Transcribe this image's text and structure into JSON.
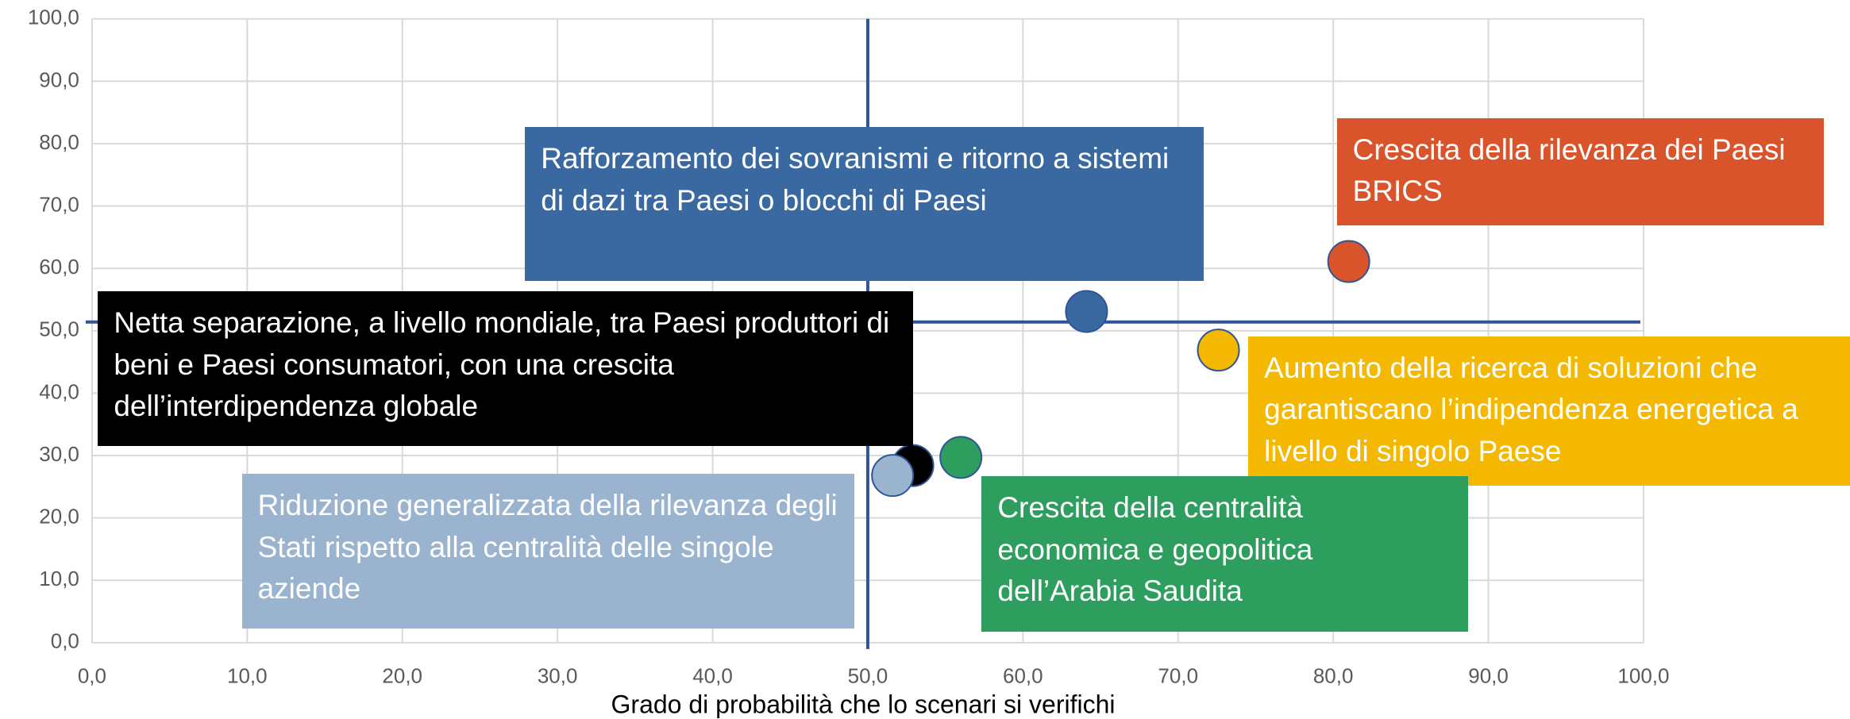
{
  "chart_data": {
    "type": "scatter",
    "x_label": "Grado di probabilità che lo scenari si verifichi",
    "xlim": [
      0,
      100
    ],
    "ylim": [
      0,
      100
    ],
    "xticks": [
      {
        "value": 0,
        "label": "0,0"
      },
      {
        "value": 10,
        "label": "10,0"
      },
      {
        "value": 20,
        "label": "20,0"
      },
      {
        "value": 30,
        "label": "30,0"
      },
      {
        "value": 40,
        "label": "40,0"
      },
      {
        "value": 50,
        "label": "50,0"
      },
      {
        "value": 60,
        "label": "60,0"
      },
      {
        "value": 70,
        "label": "70,0"
      },
      {
        "value": 80,
        "label": "80,0"
      },
      {
        "value": 90,
        "label": "90,0"
      },
      {
        "value": 100,
        "label": "100,0"
      }
    ],
    "yticks": [
      {
        "value": 0,
        "label": "0,0"
      },
      {
        "value": 10,
        "label": "10,0"
      },
      {
        "value": 20,
        "label": "20,0"
      },
      {
        "value": 30,
        "label": "30,0"
      },
      {
        "value": 40,
        "label": "40,0"
      },
      {
        "value": 50,
        "label": "50,0"
      },
      {
        "value": 60,
        "label": "60,0"
      },
      {
        "value": 70,
        "label": "70,0"
      },
      {
        "value": 80,
        "label": "80,0"
      },
      {
        "value": 90,
        "label": "90,0"
      },
      {
        "value": 100,
        "label": "100,0"
      }
    ],
    "grid": true,
    "reference_lines": {
      "x": 50,
      "y": 51.4,
      "color": "#2f5597"
    },
    "series": [
      {
        "name": "Rafforzamento dei sovranismi e ritorno a sistemi di dazi tra Paesi o blocchi di Paesi",
        "color": "#3a68a0",
        "x": [
          64.1
        ],
        "values": [
          53.1
        ]
      },
      {
        "name": "Crescita della rilevanza dei Paesi BRICS",
        "color": "#d9532b",
        "x": [
          81.0
        ],
        "values": [
          61.1
        ]
      },
      {
        "name": "Aumento della ricerca di soluzioni che garantiscano l’indipendenza energetica a livello di singolo Paese",
        "color": "#f5b800",
        "x": [
          72.6
        ],
        "values": [
          46.9
        ]
      },
      {
        "name": "Netta separazione, a livello mondiale, tra Paesi produttori di beni e Paesi consumatori, con una crescita dell’interdipendenza globale",
        "color": "#000000",
        "x": [
          52.9
        ],
        "values": [
          28.4
        ]
      },
      {
        "name": "Crescita della centralità economica e geopolitica dell’Arabia Saudita",
        "color": "#2e9e5e",
        "x": [
          56.0
        ],
        "values": [
          29.7
        ]
      },
      {
        "name": "Riduzione generalizzata della rilevanza degli Stati rispetto alla centralità delle singole aziende",
        "color": "#9ab3cf",
        "x": [
          51.6
        ],
        "values": [
          26.8
        ]
      }
    ]
  }
}
